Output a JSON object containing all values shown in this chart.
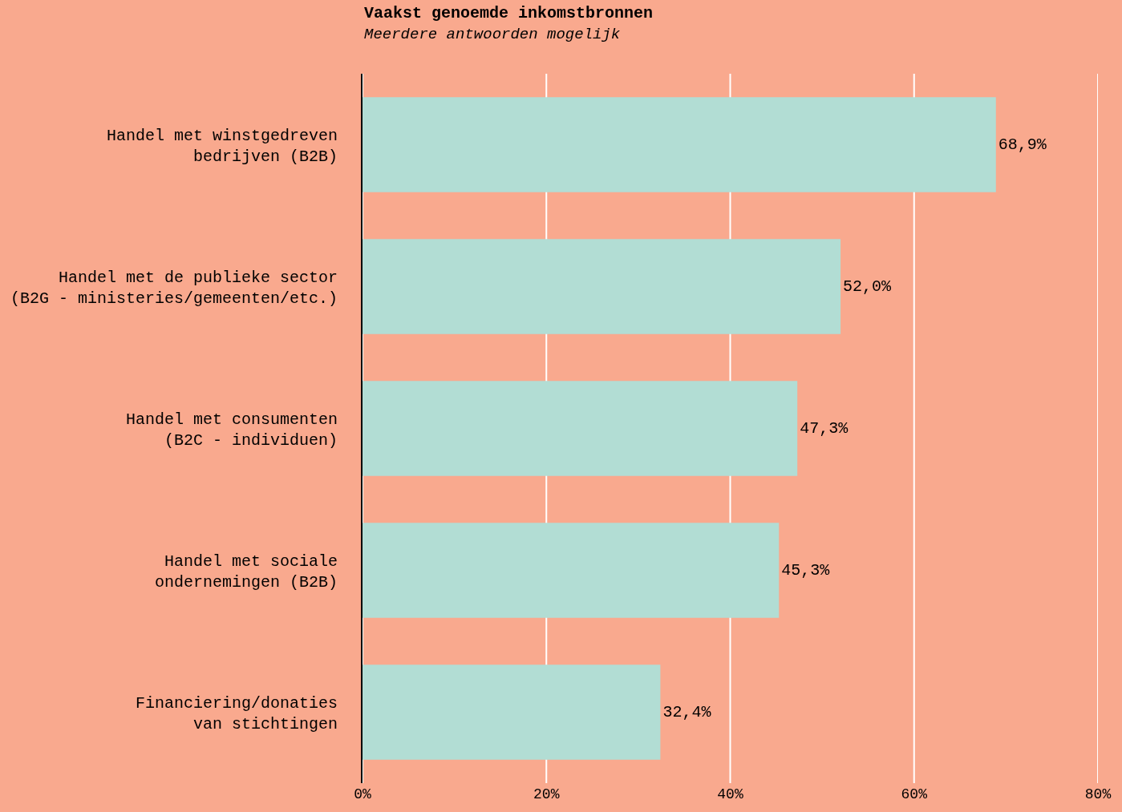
{
  "chart_data": {
    "type": "bar",
    "orientation": "horizontal",
    "title": "Vaakst genoemde inkomstbronnen",
    "subtitle": "Meerdere antwoorden mogelijk",
    "categories": [
      "Handel met winstgedreven\nbedrijven (B2B)",
      "Handel met de publieke sector\n(B2G - ministeries/gemeenten/etc.)",
      "Handel met consumenten\n(B2C - individuen)",
      "Handel met sociale\nondernemingen (B2B)",
      "Financiering/donaties\nvan stichtingen"
    ],
    "values": [
      68.9,
      52.0,
      47.3,
      45.3,
      32.4
    ],
    "value_labels": [
      "68,9%",
      "52,0%",
      "47,3%",
      "45,3%",
      "32,4%"
    ],
    "color": "#b2ddd4",
    "xlim": [
      0,
      80
    ],
    "xticks": [
      {
        "value": 0,
        "label": "0%"
      },
      {
        "value": 20,
        "label": "20%"
      },
      {
        "value": 40,
        "label": "40%"
      },
      {
        "value": 60,
        "label": "60%"
      },
      {
        "value": 80,
        "label": "80%"
      }
    ],
    "grid": "x"
  }
}
